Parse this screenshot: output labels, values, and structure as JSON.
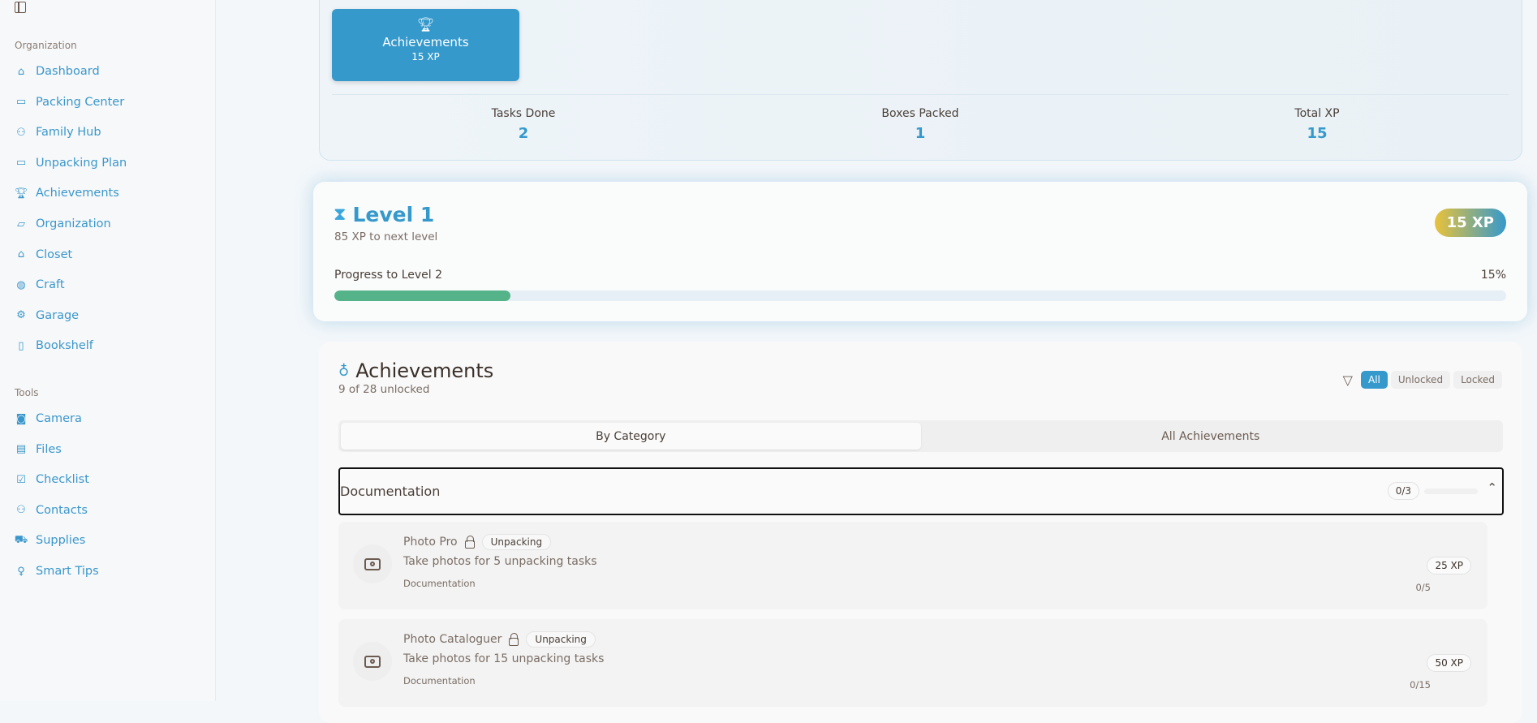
{
  "sidebar": {
    "sections": [
      {
        "label": "Organization",
        "items": [
          {
            "label": "Dashboard",
            "icon": "home-icon"
          },
          {
            "label": "Packing Center",
            "icon": "archive-icon"
          },
          {
            "label": "Family Hub",
            "icon": "users-icon"
          },
          {
            "label": "Unpacking Plan",
            "icon": "archive-icon"
          },
          {
            "label": "Achievements",
            "icon": "trophy-icon"
          },
          {
            "label": "Organization",
            "icon": "folder-open-icon"
          },
          {
            "label": "Closet",
            "icon": "hanger-icon"
          },
          {
            "label": "Craft",
            "icon": "palette-icon"
          },
          {
            "label": "Garage",
            "icon": "gear-icon"
          },
          {
            "label": "Bookshelf",
            "icon": "book-icon"
          }
        ]
      },
      {
        "label": "Tools",
        "items": [
          {
            "label": "Camera",
            "icon": "camera-icon"
          },
          {
            "label": "Files",
            "icon": "file-icon"
          },
          {
            "label": "Checklist",
            "icon": "checkbox-icon"
          },
          {
            "label": "Contacts",
            "icon": "users-icon"
          },
          {
            "label": "Supplies",
            "icon": "cart-icon"
          },
          {
            "label": "Smart Tips",
            "icon": "lightbulb-icon"
          }
        ]
      }
    ]
  },
  "summary": {
    "tile": {
      "title": "Achievements",
      "xp": "15 XP"
    },
    "stats": [
      {
        "label": "Tasks Done",
        "value": "2"
      },
      {
        "label": "Boxes Packed",
        "value": "1"
      },
      {
        "label": "Total XP",
        "value": "15"
      }
    ]
  },
  "level": {
    "title": "Level 1",
    "subtitle": "85 XP to next level",
    "badge": "15 XP",
    "progress_label": "Progress to Level 2",
    "progress_text": "15%",
    "progress": 0.15,
    "colors": {
      "bar": "#55b38a",
      "badge_from": "#e9c23a",
      "badge_to": "#3599cc"
    }
  },
  "achievements": {
    "title": "Achievements",
    "subtitle": "9 of 28 unlocked",
    "filters": [
      "All",
      "Unlocked",
      "Locked"
    ],
    "active_filter": "All",
    "tabs": [
      "By Category",
      "All Achievements"
    ],
    "category": {
      "name": "Documentation",
      "count": "0/3"
    },
    "items": [
      {
        "name": "Photo Pro",
        "tag": "Unpacking",
        "desc": "Take photos for 5 unpacking tasks",
        "category": "Documentation",
        "xp": "25 XP",
        "progress": "0/5"
      },
      {
        "name": "Photo Cataloguer",
        "tag": "Unpacking",
        "desc": "Take photos for 15 unpacking tasks",
        "category": "Documentation",
        "xp": "50 XP",
        "progress": "0/15"
      }
    ]
  }
}
